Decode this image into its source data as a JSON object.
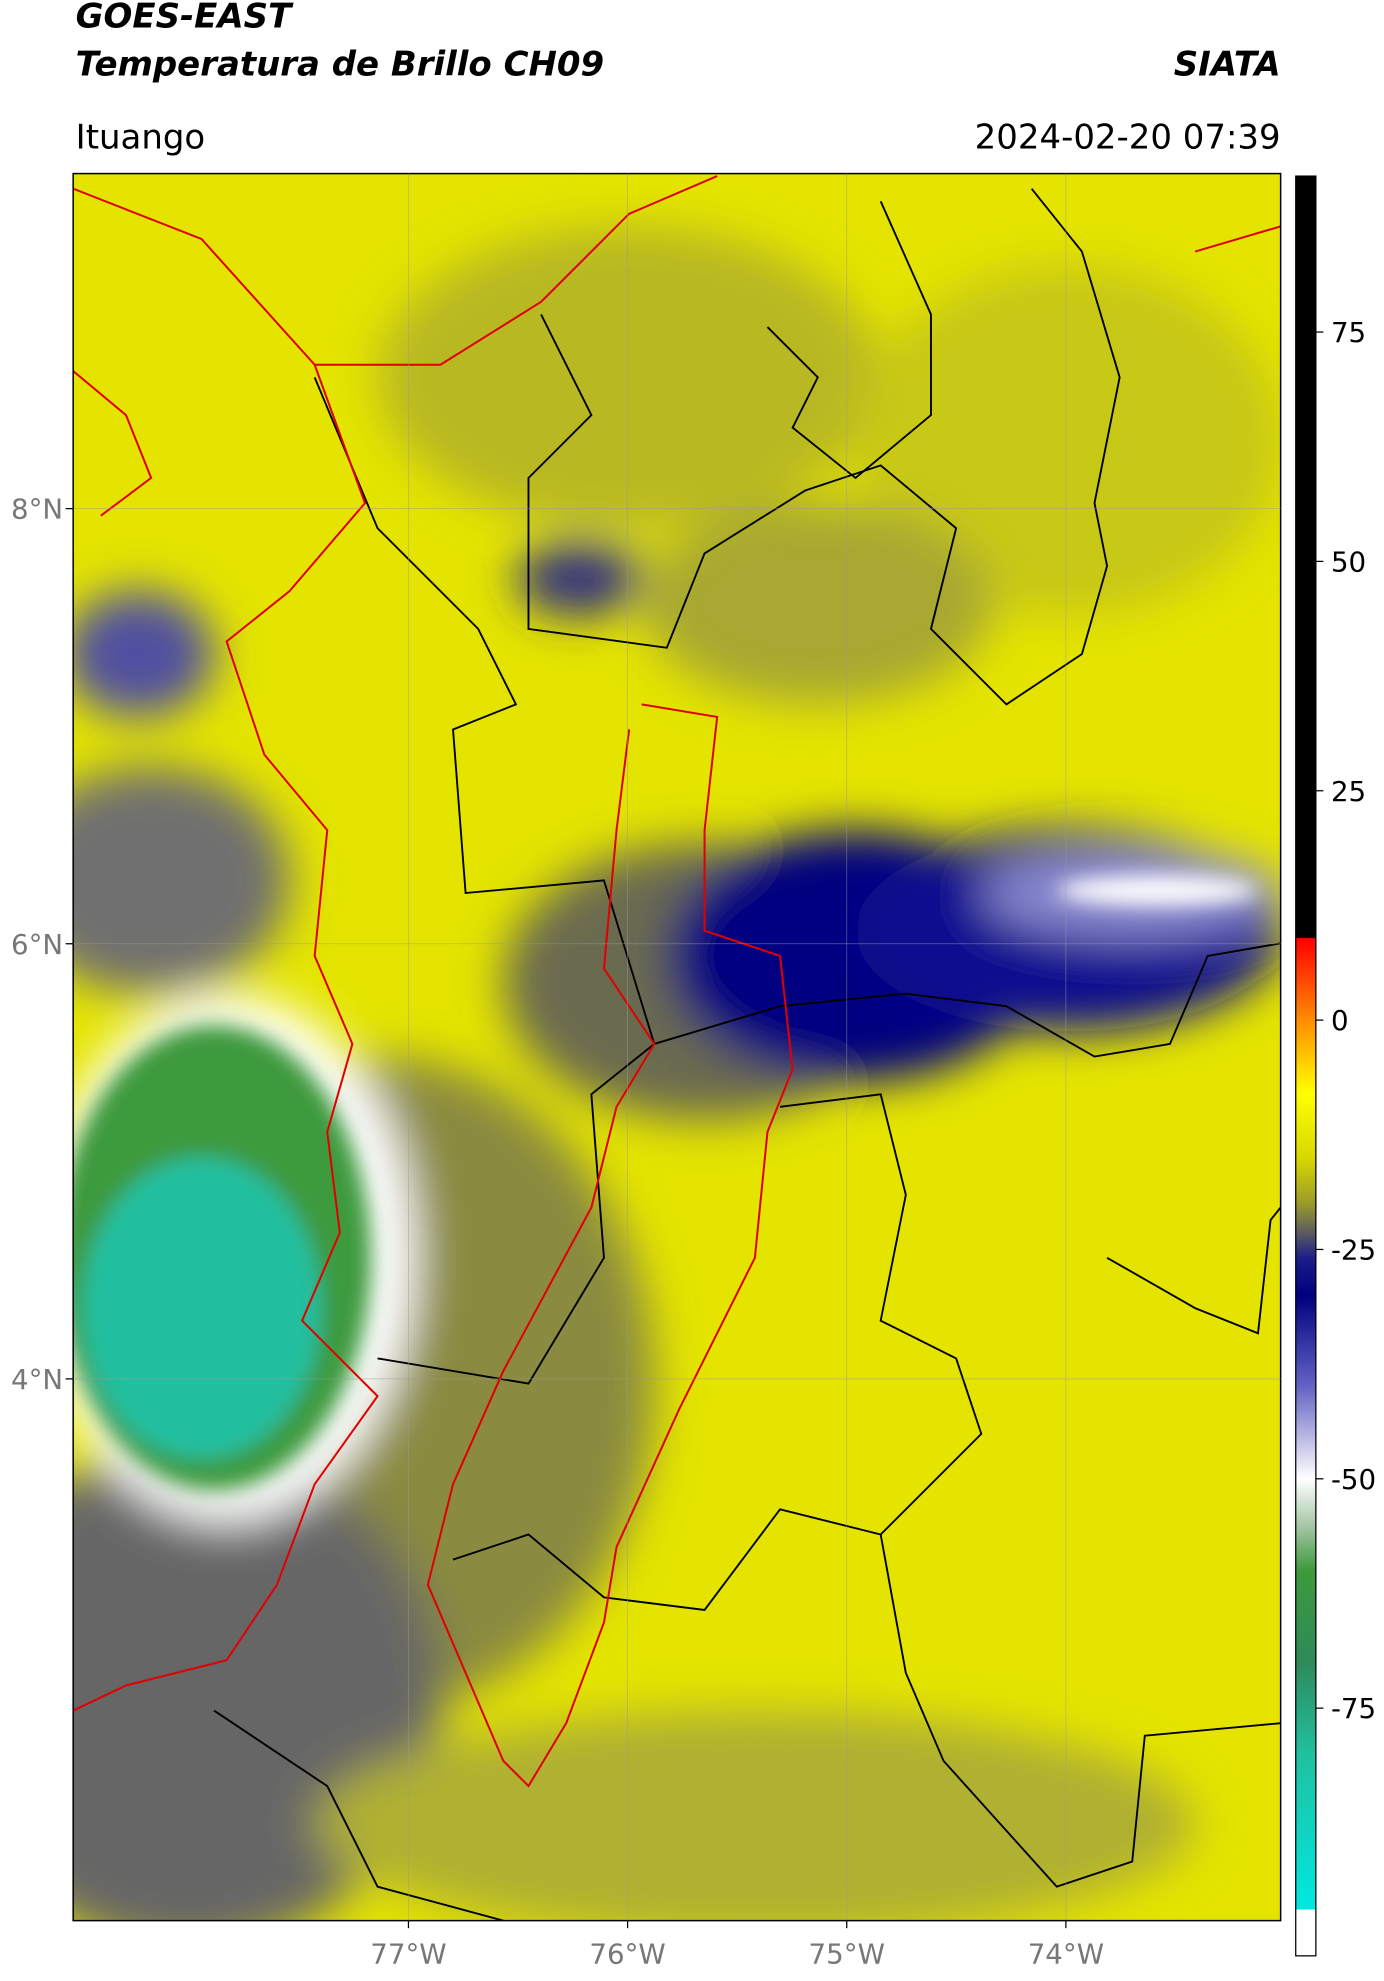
{
  "chart_data": {
    "type": "map",
    "title": "GOES-EAST",
    "subtitle": "Temperatura de Brillo CH09",
    "source": "SIATA",
    "location": "Ituango",
    "timestamp": "2024-02-20 07:39",
    "xlim": [
      -78.53,
      -73.02
    ],
    "ylim": [
      1.51,
      9.54
    ],
    "xticks": [
      {
        "value": -77,
        "label": "77°W"
      },
      {
        "value": -76,
        "label": "76°W"
      },
      {
        "value": -75,
        "label": "75°W"
      },
      {
        "value": -74,
        "label": "74°W"
      }
    ],
    "yticks": [
      {
        "value": 8,
        "label": "8°N"
      },
      {
        "value": 6,
        "label": "6°N"
      },
      {
        "value": 4,
        "label": "4°N"
      }
    ],
    "grid": true,
    "colorbar": {
      "clim": [
        -102,
        92
      ],
      "ticks": [
        75,
        50,
        25,
        0,
        -25,
        -50,
        -75
      ],
      "stops": [
        {
          "value": 92,
          "color": "#000000"
        },
        {
          "value": 9,
          "color": "#000000"
        },
        {
          "value": 8.9,
          "color": "#ff0000"
        },
        {
          "value": 0,
          "color": "#ff8c00"
        },
        {
          "value": -8,
          "color": "#ffff00"
        },
        {
          "value": -15,
          "color": "#d8d800"
        },
        {
          "value": -20,
          "color": "#9a9a2a"
        },
        {
          "value": -23,
          "color": "#5e5e5e"
        },
        {
          "value": -26,
          "color": "#1c1c8a"
        },
        {
          "value": -30,
          "color": "#000080"
        },
        {
          "value": -40,
          "color": "#6464c4"
        },
        {
          "value": -50,
          "color": "#ffffff"
        },
        {
          "value": -55,
          "color": "#a8c8a8"
        },
        {
          "value": -60,
          "color": "#3c9a3c"
        },
        {
          "value": -70,
          "color": "#2e8a5a"
        },
        {
          "value": -80,
          "color": "#20c0a0"
        },
        {
          "value": -96.9,
          "color": "#00e8e0"
        },
        {
          "value": -97,
          "color": "#ffffff"
        },
        {
          "value": -102,
          "color": "#ffffff"
        }
      ]
    }
  }
}
